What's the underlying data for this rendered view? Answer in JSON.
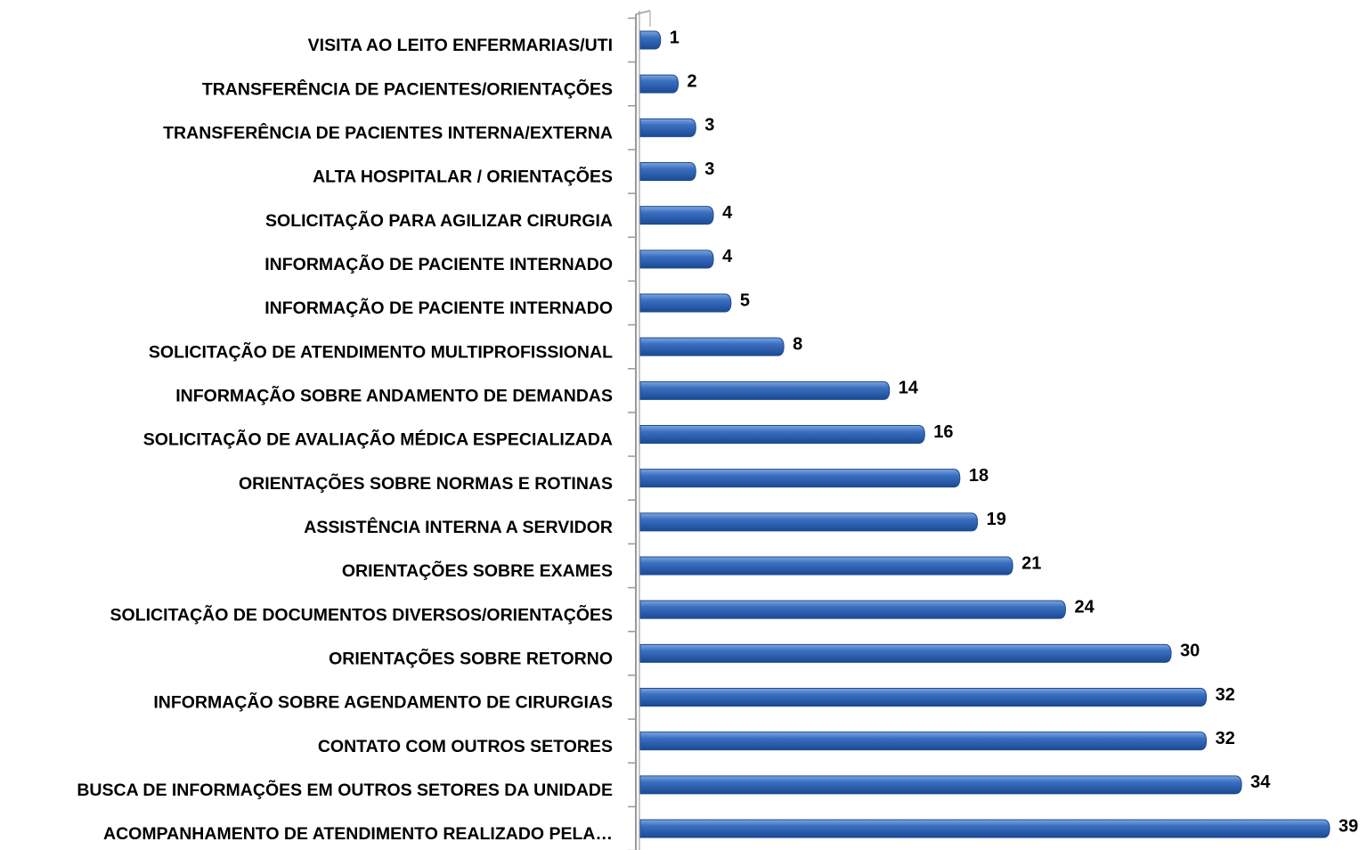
{
  "chart_data": {
    "type": "bar",
    "orientation": "horizontal",
    "color": "#3a6fc0",
    "categories": [
      "VISITA AO LEITO ENFERMARIAS/UTI",
      "TRANSFERÊNCIA DE PACIENTES/ORIENTAÇÕES",
      "TRANSFERÊNCIA DE PACIENTES INTERNA/EXTERNA",
      "ALTA HOSPITALAR / ORIENTAÇÕES",
      "SOLICITAÇÃO PARA AGILIZAR CIRURGIA",
      "INFORMAÇÃO DE PACIENTE INTERNADO",
      "INFORMAÇÃO DE PACIENTE INTERNADO",
      "SOLICITAÇÃO DE ATENDIMENTO MULTIPROFISSIONAL",
      "INFORMAÇÃO SOBRE ANDAMENTO DE DEMANDAS",
      "SOLICITAÇÃO DE AVALIAÇÃO MÉDICA ESPECIALIZADA",
      "ORIENTAÇÕES SOBRE NORMAS E ROTINAS",
      "ASSISTÊNCIA INTERNA A SERVIDOR",
      "ORIENTAÇÕES SOBRE EXAMES",
      "SOLICITAÇÃO DE DOCUMENTOS DIVERSOS/ORIENTAÇÕES",
      "ORIENTAÇÕES SOBRE RETORNO",
      "INFORMAÇÃO SOBRE AGENDAMENTO DE CIRURGIAS",
      "CONTATO COM OUTROS SETORES",
      "BUSCA DE INFORMAÇÕES EM OUTROS SETORES DA UNIDADE",
      "ACOMPANHAMENTO DE ATENDIMENTO REALIZADO PELA…"
    ],
    "values": [
      1,
      2,
      3,
      3,
      4,
      4,
      5,
      8,
      14,
      16,
      18,
      19,
      21,
      24,
      30,
      32,
      32,
      34,
      39
    ]
  }
}
